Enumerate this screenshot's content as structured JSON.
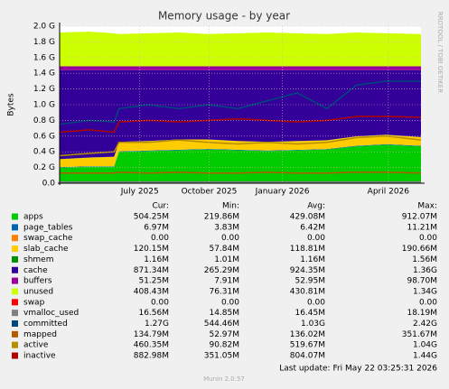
{
  "chart_data": {
    "type": "area",
    "title": "Memory usage - by year",
    "y_label": "Bytes",
    "watermark": "RRDTOOL / TOBI OETIKER",
    "x": [
      0,
      30,
      55,
      60,
      90,
      120,
      150,
      180,
      210,
      240,
      270,
      300,
      330,
      365
    ],
    "xlim": [
      0,
      365
    ],
    "xticks": [
      {
        "value": 81,
        "label": "July 2025"
      },
      {
        "value": 151,
        "label": "October 2025"
      },
      {
        "value": 225,
        "label": "January 2026"
      },
      {
        "value": 332,
        "label": "April 2026"
      }
    ],
    "ylim": [
      0,
      2.0
    ],
    "yticks": [
      {
        "value": 0,
        "label": "0.0"
      },
      {
        "value": 0.2,
        "label": "0.2 G"
      },
      {
        "value": 0.4,
        "label": "0.4 G"
      },
      {
        "value": 0.6,
        "label": "0.6 G"
      },
      {
        "value": 0.8,
        "label": "0.8 G"
      },
      {
        "value": 1.0,
        "label": "1.0 G"
      },
      {
        "value": 1.2,
        "label": "1.2 G"
      },
      {
        "value": 1.4,
        "label": "1.4 G"
      },
      {
        "value": 1.6,
        "label": "1.6 G"
      },
      {
        "value": 1.8,
        "label": "1.8 G"
      },
      {
        "value": 2.0,
        "label": "2.0 G"
      }
    ],
    "grid": true,
    "stat_headers": [
      "Cur:",
      "Min:",
      "Avg:",
      "Max:"
    ],
    "series": [
      {
        "name": "apps",
        "color": "#00cc00",
        "draw": "stack",
        "values": [
          0.2,
          0.21,
          0.21,
          0.4,
          0.41,
          0.42,
          0.43,
          0.42,
          0.41,
          0.42,
          0.43,
          0.47,
          0.49,
          0.47
        ],
        "stats": [
          "504.25M",
          "219.86M",
          "429.08M",
          "912.07M"
        ]
      },
      {
        "name": "page_tables",
        "color": "#0066b3",
        "draw": "stack",
        "values": [
          0.006,
          0.006,
          0.006,
          0.007,
          0.007,
          0.007,
          0.007,
          0.007,
          0.006,
          0.006,
          0.006,
          0.007,
          0.007,
          0.007
        ],
        "stats": [
          "6.97M",
          "3.83M",
          "6.42M",
          "11.21M"
        ]
      },
      {
        "name": "swap_cache",
        "color": "#ff8000",
        "draw": "stack",
        "values": [
          0,
          0,
          0,
          0,
          0,
          0,
          0,
          0,
          0,
          0,
          0,
          0,
          0,
          0
        ],
        "stats": [
          "0.00",
          "0.00",
          "0.00",
          "0.00"
        ]
      },
      {
        "name": "slab_cache",
        "color": "#ffcc00",
        "draw": "stack",
        "values": [
          0.1,
          0.11,
          0.12,
          0.12,
          0.12,
          0.13,
          0.12,
          0.11,
          0.11,
          0.11,
          0.11,
          0.12,
          0.12,
          0.11
        ],
        "stats": [
          "120.15M",
          "57.84M",
          "118.81M",
          "190.66M"
        ]
      },
      {
        "name": "shmem",
        "color": "#008f00",
        "draw": "stack",
        "values": [
          0.001,
          0.001,
          0.001,
          0.001,
          0.001,
          0.001,
          0.001,
          0.001,
          0.001,
          0.001,
          0.001,
          0.001,
          0.001,
          0.001
        ],
        "stats": [
          "1.16M",
          "1.01M",
          "1.16M",
          "1.56M"
        ]
      },
      {
        "name": "cache",
        "color": "#330099",
        "draw": "stack",
        "values": [
          1.133,
          1.113,
          1.103,
          0.912,
          0.902,
          0.882,
          0.882,
          0.902,
          0.913,
          0.903,
          0.893,
          0.842,
          0.822,
          0.852
        ],
        "stats": [
          "871.34M",
          "265.29M",
          "924.35M",
          "1.36G"
        ]
      },
      {
        "name": "buffers",
        "color": "#990099",
        "draw": "stack",
        "values": [
          0.05,
          0.05,
          0.05,
          0.05,
          0.05,
          0.05,
          0.05,
          0.05,
          0.05,
          0.05,
          0.05,
          0.05,
          0.05,
          0.05
        ],
        "stats": [
          "51.25M",
          "7.91M",
          "52.95M",
          "98.70M"
        ]
      },
      {
        "name": "unused",
        "color": "#ccff00",
        "draw": "stack",
        "values": [
          0.43,
          0.44,
          0.42,
          0.41,
          0.42,
          0.43,
          0.41,
          0.42,
          0.43,
          0.42,
          0.41,
          0.43,
          0.42,
          0.41
        ],
        "stats": [
          "408.43M",
          "76.31M",
          "430.81M",
          "1.34G"
        ]
      },
      {
        "name": "swap",
        "color": "#ff0000",
        "draw": "stack",
        "values": [
          0,
          0,
          0,
          0,
          0,
          0,
          0,
          0,
          0,
          0,
          0,
          0,
          0,
          0
        ],
        "stats": [
          "0.00",
          "0.00",
          "0.00",
          "0.00"
        ]
      },
      {
        "name": "vmalloc_used",
        "color": "#808080",
        "draw": "line",
        "values": [
          0.016,
          0.016,
          0.016,
          0.016,
          0.016,
          0.016,
          0.016,
          0.016,
          0.016,
          0.016,
          0.016,
          0.016,
          0.016,
          0.016
        ],
        "stats": [
          "16.56M",
          "14.85M",
          "16.45M",
          "18.19M"
        ]
      },
      {
        "name": "committed",
        "color": "#00487d",
        "draw": "line",
        "values": [
          0.75,
          0.8,
          0.78,
          0.95,
          1.0,
          0.95,
          1.0,
          0.95,
          1.05,
          1.15,
          0.95,
          1.25,
          1.3,
          1.3
        ],
        "stats": [
          "1.27G",
          "544.46M",
          "1.03G",
          "2.42G"
        ]
      },
      {
        "name": "mapped",
        "color": "#b35a00",
        "draw": "line",
        "values": [
          0.13,
          0.13,
          0.13,
          0.14,
          0.13,
          0.14,
          0.13,
          0.13,
          0.14,
          0.13,
          0.13,
          0.14,
          0.14,
          0.13
        ],
        "stats": [
          "134.79M",
          "52.97M",
          "136.02M",
          "351.67M"
        ]
      },
      {
        "name": "active",
        "color": "#b38f00",
        "draw": "line",
        "values": [
          0.35,
          0.38,
          0.4,
          0.52,
          0.52,
          0.55,
          0.52,
          0.5,
          0.52,
          0.5,
          0.52,
          0.58,
          0.6,
          0.55
        ],
        "stats": [
          "460.35M",
          "90.82M",
          "519.67M",
          "1.04G"
        ]
      },
      {
        "name": "inactive",
        "color": "#b30000",
        "draw": "line",
        "values": [
          0.65,
          0.68,
          0.65,
          0.78,
          0.8,
          0.78,
          0.8,
          0.82,
          0.8,
          0.78,
          0.8,
          0.85,
          0.85,
          0.84
        ],
        "stats": [
          "882.98M",
          "351.05M",
          "804.07M",
          "1.44G"
        ]
      }
    ],
    "last_update": "Last update: Fri May 22 03:25:31 2026",
    "footer": "Munin 2.0.57"
  }
}
